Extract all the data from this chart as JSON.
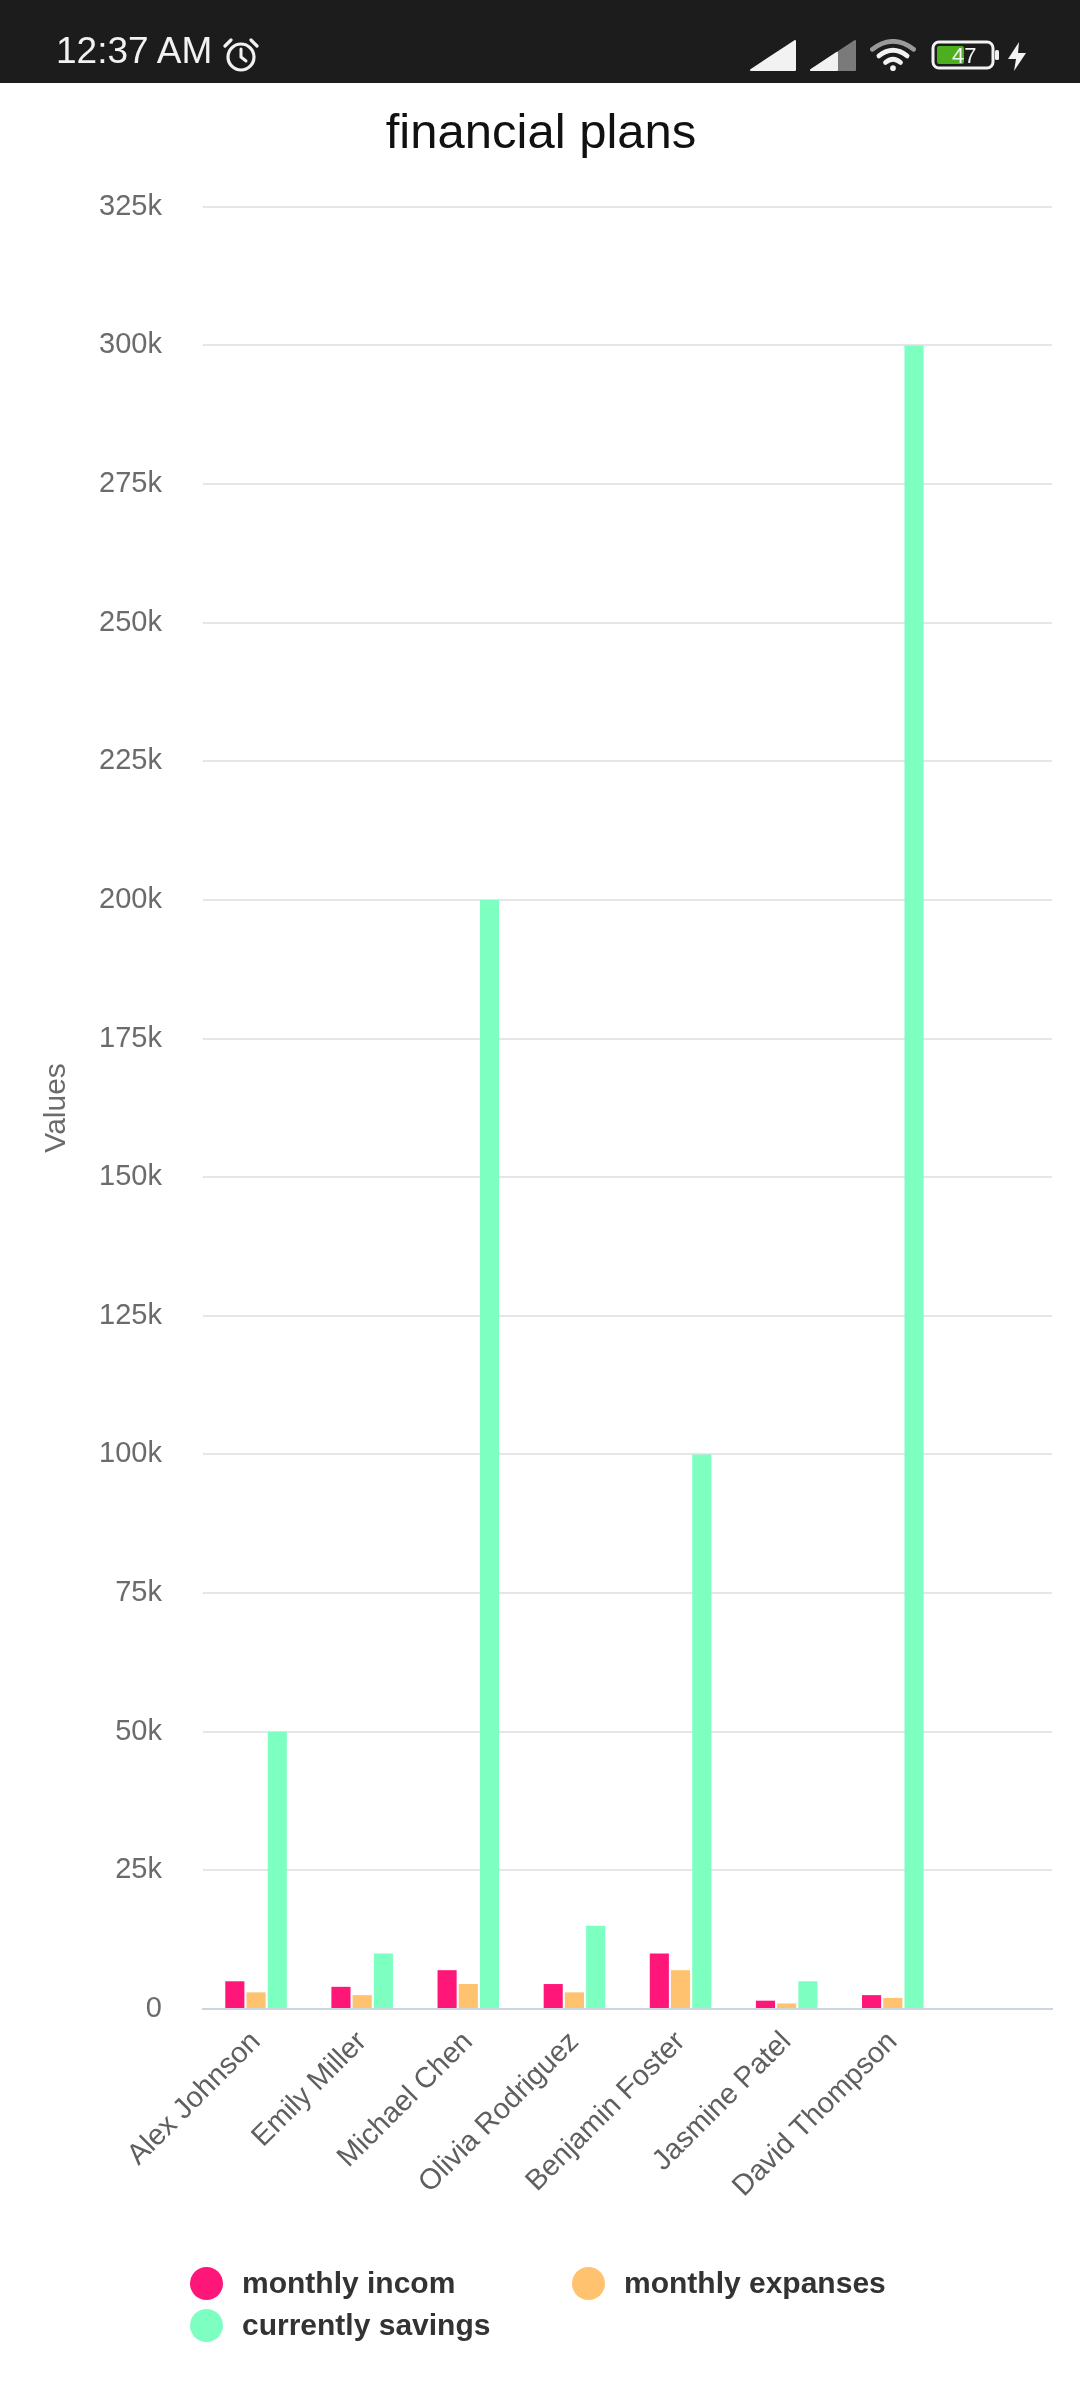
{
  "chart_data": {
    "type": "bar",
    "title": "financial plans",
    "ylabel": "Values",
    "categories": [
      "Alex Johnson",
      "Emily Miller",
      "Michael Chen",
      "Olivia Rodriguez",
      "Benjamin Foster",
      "Jasmine Patel",
      "David Thompson",
      null
    ],
    "series": [
      {
        "name": "monthly incom",
        "color": "#ff1679",
        "values": [
          5000,
          4000,
          7000,
          4500,
          10000,
          1500,
          2500,
          null
        ]
      },
      {
        "name": "monthly expanses",
        "color": "#ffc36f",
        "values": [
          3000,
          2500,
          4500,
          3000,
          7000,
          1000,
          2000,
          null
        ]
      },
      {
        "name": "currently savings",
        "color": "#7effc2",
        "values": [
          50000,
          10000,
          200000,
          15000,
          100000,
          5000,
          300000,
          null
        ]
      }
    ],
    "ylim": [
      0,
      325000
    ],
    "yticks": [
      0,
      {
        "value": 25000,
        "label": "25k"
      },
      {
        "value": 50000,
        "label": "50k"
      },
      {
        "value": 75000,
        "label": "75k"
      },
      {
        "value": 100000,
        "label": "100k"
      },
      {
        "value": 125000,
        "label": "125k"
      },
      {
        "value": 150000,
        "label": "150k"
      },
      {
        "value": 175000,
        "label": "175k"
      },
      {
        "value": 200000,
        "label": "200k"
      },
      {
        "value": 225000,
        "label": "225k"
      },
      {
        "value": 250000,
        "label": "250k"
      },
      {
        "value": 275000,
        "label": "275k"
      },
      {
        "value": 300000,
        "label": "300k"
      },
      {
        "value": 325000,
        "label": "325k"
      }
    ],
    "grid": "y",
    "legend": "bottom",
    "annotations": [
      "12:37 AM",
      "47"
    ]
  }
}
